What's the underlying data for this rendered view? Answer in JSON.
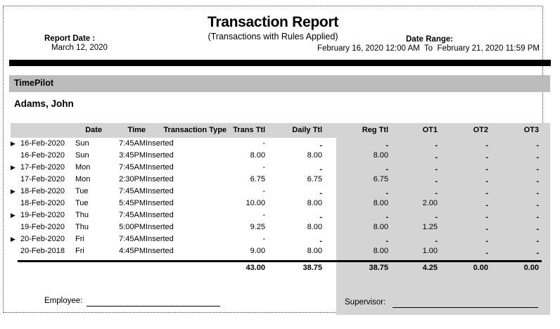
{
  "report": {
    "title": "Transaction Report",
    "subtitle": "(Transactions with Rules Applied)",
    "report_date_label": "Report Date :",
    "report_date_value": "March 12, 2020",
    "date_range_label": "Date Range:",
    "date_range_value": "February 16, 2020 12:00 AM  To  February 21, 2020 11:59 PM"
  },
  "company": {
    "name": "TimePilot"
  },
  "employee": {
    "name": "Adams, John"
  },
  "table": {
    "columns": [
      "Date",
      "Time",
      "Transaction Type",
      "Trans Ttl",
      "Daily Ttl",
      "Reg Ttl",
      "OT1",
      "OT2",
      "OT3"
    ],
    "rows": [
      {
        "marker": true,
        "date": "16-Feb-2020",
        "day": "Sun",
        "time": "7:45AM",
        "type": "Inserted",
        "trans_ttl": "-",
        "daily_ttl": "-",
        "reg_ttl": "-",
        "ot1": "-",
        "ot2": "-",
        "ot3": "-"
      },
      {
        "marker": false,
        "date": "16-Feb-2020",
        "day": "Sun",
        "time": "3:45PM",
        "type": "Inserted",
        "trans_ttl": "8.00",
        "daily_ttl": "8.00",
        "reg_ttl": "8.00",
        "ot1": "-",
        "ot2": "-",
        "ot3": "-"
      },
      {
        "marker": true,
        "date": "17-Feb-2020",
        "day": "Mon",
        "time": "7:45AM",
        "type": "Inserted",
        "trans_ttl": "-",
        "daily_ttl": "-",
        "reg_ttl": "-",
        "ot1": "-",
        "ot2": "-",
        "ot3": "-"
      },
      {
        "marker": false,
        "date": "17-Feb-2020",
        "day": "Mon",
        "time": "2:30PM",
        "type": "Inserted",
        "trans_ttl": "6.75",
        "daily_ttl": "6.75",
        "reg_ttl": "6.75",
        "ot1": "-",
        "ot2": "-",
        "ot3": "-"
      },
      {
        "marker": true,
        "date": "18-Feb-2020",
        "day": "Tue",
        "time": "7:45AM",
        "type": "Inserted",
        "trans_ttl": "-",
        "daily_ttl": "-",
        "reg_ttl": "-",
        "ot1": "-",
        "ot2": "-",
        "ot3": "-"
      },
      {
        "marker": false,
        "date": "18-Feb-2020",
        "day": "Tue",
        "time": "5:45PM",
        "type": "Inserted",
        "trans_ttl": "10.00",
        "daily_ttl": "8.00",
        "reg_ttl": "8.00",
        "ot1": "2.00",
        "ot2": "-",
        "ot3": "-"
      },
      {
        "marker": true,
        "date": "19-Feb-2020",
        "day": "Thu",
        "time": "7:45AM",
        "type": "Inserted",
        "trans_ttl": "-",
        "daily_ttl": "-",
        "reg_ttl": "-",
        "ot1": "-",
        "ot2": "-",
        "ot3": "-"
      },
      {
        "marker": false,
        "date": "19-Feb-2020",
        "day": "Thu",
        "time": "5:00PM",
        "type": "Inserted",
        "trans_ttl": "9.25",
        "daily_ttl": "8.00",
        "reg_ttl": "8.00",
        "ot1": "1.25",
        "ot2": "-",
        "ot3": "-"
      },
      {
        "marker": true,
        "date": "20-Feb-2020",
        "day": "Fri",
        "time": "7:45AM",
        "type": "Inserted",
        "trans_ttl": "-",
        "daily_ttl": "-",
        "reg_ttl": "-",
        "ot1": "-",
        "ot2": "-",
        "ot3": "-"
      },
      {
        "marker": false,
        "date": "20-Feb-2018",
        "day": "Fri",
        "time": "4:45PM",
        "type": "Inserted",
        "trans_ttl": "9.00",
        "daily_ttl": "8.00",
        "reg_ttl": "8.00",
        "ot1": "1.00",
        "ot2": "-",
        "ot3": "-"
      }
    ],
    "totals": {
      "trans_ttl": "43.00",
      "daily_ttl": "38.75",
      "reg_ttl": "38.75",
      "ot1": "4.25",
      "ot2": "0.00",
      "ot3": "0.00"
    }
  },
  "signatures": {
    "employee_label": "Employee:",
    "supervisor_label": "Supervisor:"
  },
  "icons": {
    "row_marker": "play-right-triangle-icon",
    "row_marker_glyph": "▶"
  },
  "colors": {
    "band_dark": "#bcbcbc",
    "band_light": "#d4d4d4",
    "divider": "#000000"
  }
}
